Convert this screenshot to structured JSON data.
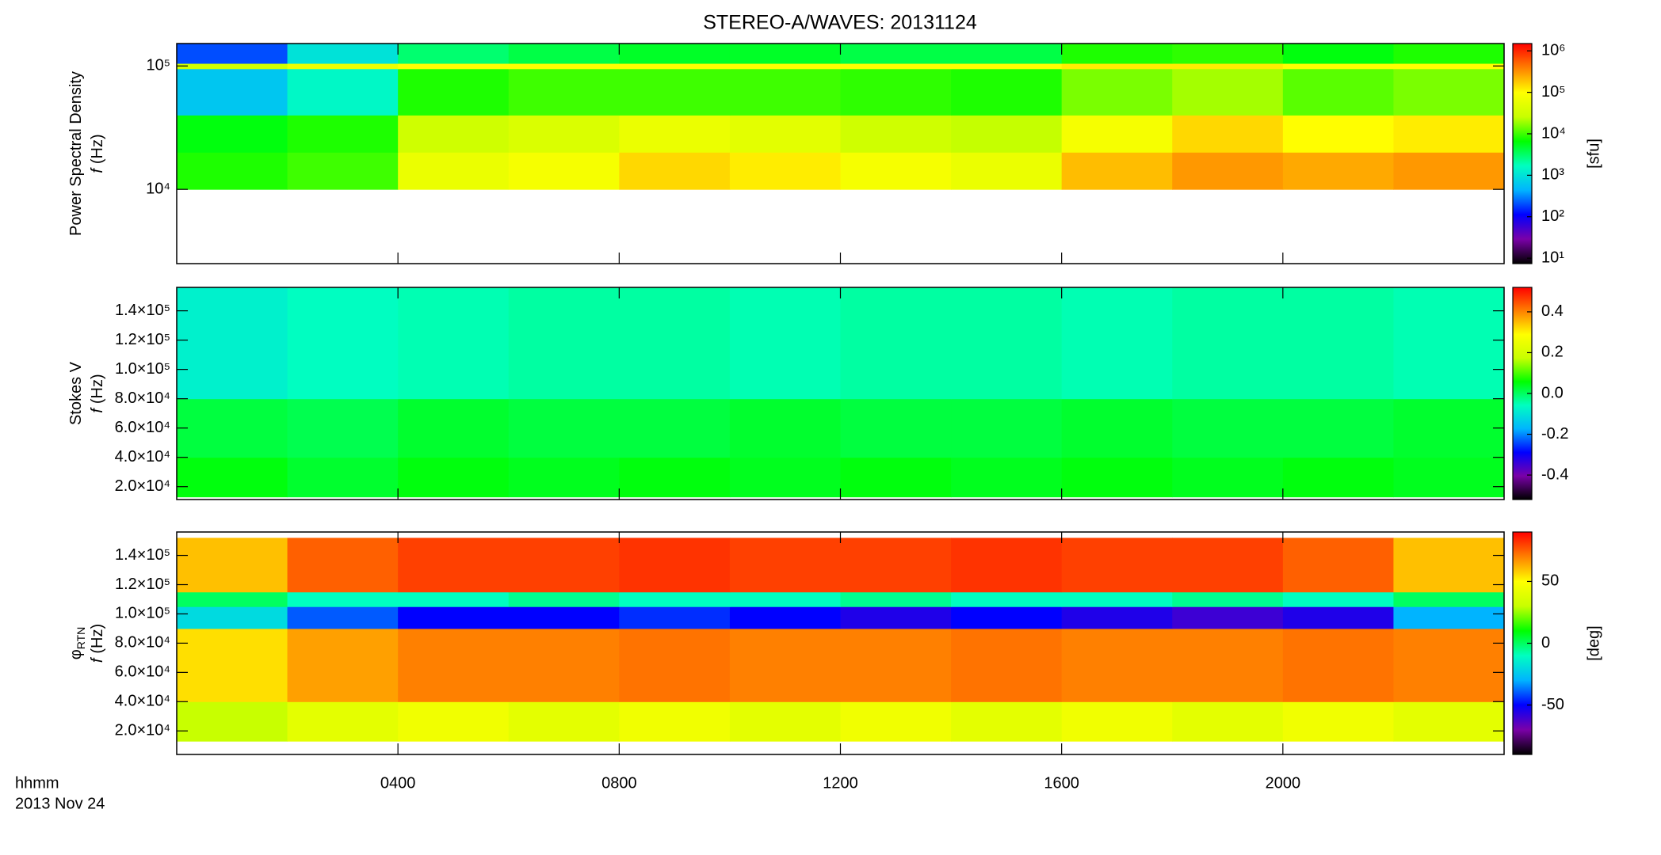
{
  "chart_data": [
    {
      "type": "heatmap",
      "title": "STEREO-A/WAVES: 20131124",
      "quantity": "Power Spectral Density",
      "yvar": "f",
      "yunit": "(Hz)",
      "clabel": "[sfu]",
      "xlim": [
        0,
        24
      ],
      "xticks": [
        4,
        8,
        12,
        16,
        20
      ],
      "yscale": "log",
      "ylim": [
        2500,
        152000
      ],
      "yticks": [
        {
          "value": 10000,
          "label": "10⁴"
        },
        {
          "value": 100000,
          "label": "10⁵"
        }
      ],
      "xbins": [
        0,
        2,
        4,
        6,
        8,
        10,
        12,
        14,
        16,
        18,
        20,
        22,
        24
      ],
      "ybins": [
        10000,
        20000,
        40000,
        95000,
        105000,
        152000
      ],
      "z": [
        [
          8000,
          10000,
          60000,
          80000,
          150000,
          120000,
          80000,
          60000,
          200000,
          300000,
          250000,
          300000
        ],
        [
          6000,
          8000,
          30000,
          40000,
          60000,
          50000,
          30000,
          25000,
          80000,
          150000,
          100000,
          120000
        ],
        [
          600,
          1500,
          8000,
          10000,
          10000,
          10000,
          9000,
          8000,
          15000,
          20000,
          12000,
          15000
        ],
        [
          30000,
          60000,
          100000,
          100000,
          100000,
          100000,
          100000,
          100000,
          120000,
          120000,
          100000,
          100000
        ],
        [
          200,
          1000,
          3000,
          4000,
          5000,
          5000,
          4000,
          4000,
          8000,
          9000,
          6000,
          8000
        ]
      ],
      "cscale": "log",
      "clim": [
        7.4,
        1500000
      ],
      "cticks": [
        {
          "value": 10,
          "label": "10¹"
        },
        {
          "value": 100,
          "label": "10²"
        },
        {
          "value": 1000,
          "label": "10³"
        },
        {
          "value": 10000,
          "label": "10⁴"
        },
        {
          "value": 100000,
          "label": "10⁵"
        },
        {
          "value": 1000000,
          "label": "10⁶"
        }
      ],
      "colormap": [
        "#000000",
        "#7a00a8",
        "#0000ff",
        "#00b4ff",
        "#00ffc0",
        "#00ff00",
        "#c8ff00",
        "#ffff00",
        "#ff8000",
        "#ff0000"
      ]
    },
    {
      "type": "heatmap",
      "quantity": "Stokes V",
      "yvar": "f",
      "yunit": "(Hz)",
      "xlim": [
        0,
        24
      ],
      "xticks": [
        4,
        8,
        12,
        16,
        20
      ],
      "yscale": "linear",
      "ylim": [
        11200,
        156000
      ],
      "yticks": [
        {
          "value": 20000,
          "label": "2.0×10⁴"
        },
        {
          "value": 40000,
          "label": "4.0×10⁴"
        },
        {
          "value": 60000,
          "label": "6.0×10⁴"
        },
        {
          "value": 80000,
          "label": "8.0×10⁴"
        },
        {
          "value": 100000,
          "label": "1.0×10⁵"
        },
        {
          "value": 120000,
          "label": "1.2×10⁵"
        },
        {
          "value": 140000,
          "label": "1.4×10⁵"
        }
      ],
      "xbins": [
        0,
        2,
        4,
        6,
        8,
        10,
        12,
        14,
        16,
        18,
        20,
        22,
        24
      ],
      "ybins": [
        13000,
        40000,
        80000,
        156000
      ],
      "z": [
        [
          0.05,
          0.03,
          0.05,
          0.04,
          0.05,
          0.04,
          0.05,
          0.04,
          0.05,
          0.04,
          0.05,
          0.04
        ],
        [
          0.02,
          0.01,
          0.03,
          0.02,
          0.02,
          0.03,
          0.02,
          0.02,
          0.03,
          0.02,
          0.02,
          0.03
        ],
        [
          -0.08,
          -0.06,
          -0.05,
          -0.04,
          -0.04,
          -0.05,
          -0.04,
          -0.04,
          -0.05,
          -0.04,
          -0.04,
          -0.05
        ]
      ],
      "cscale": "linear",
      "clim": [
        -0.52,
        0.52
      ],
      "cticks": [
        -0.4,
        -0.2,
        {
          "value": 0,
          "label": "0.0"
        },
        0.2,
        0.4
      ],
      "colormap": [
        "#000000",
        "#7a00a8",
        "#0000ff",
        "#00b4ff",
        "#00ffc0",
        "#00ff00",
        "#c8ff00",
        "#ffff00",
        "#ff8000",
        "#ff0000"
      ]
    },
    {
      "type": "heatmap",
      "quantity": "φ",
      "quantity_sub": "RTN",
      "yvar": "f",
      "yunit": "(Hz)",
      "clabel": "[deg]",
      "xlim": [
        0,
        24
      ],
      "xticks": [
        {
          "value": 4,
          "label": "0400"
        },
        {
          "value": 8,
          "label": "0800"
        },
        {
          "value": 12,
          "label": "1200"
        },
        {
          "value": 16,
          "label": "1600"
        },
        {
          "value": 20,
          "label": "2000"
        }
      ],
      "xlabel": "hhmm",
      "date": "2013 Nov 24",
      "yscale": "linear",
      "ylim": [
        3900,
        156000
      ],
      "yticks": [
        {
          "value": 20000,
          "label": "2.0×10⁴"
        },
        {
          "value": 40000,
          "label": "4.0×10⁴"
        },
        {
          "value": 60000,
          "label": "6.0×10⁴"
        },
        {
          "value": 80000,
          "label": "8.0×10⁴"
        },
        {
          "value": 100000,
          "label": "1.0×10⁵"
        },
        {
          "value": 120000,
          "label": "1.2×10⁵"
        },
        {
          "value": 140000,
          "label": "1.4×10⁵"
        }
      ],
      "xbins": [
        0,
        2,
        4,
        6,
        8,
        10,
        12,
        14,
        16,
        18,
        20,
        22,
        24
      ],
      "ybins": [
        13000,
        40000,
        90000,
        105000,
        115000,
        152000
      ],
      "z": [
        [
          30,
          40,
          45,
          40,
          45,
          40,
          45,
          40,
          45,
          40,
          45,
          40
        ],
        [
          55,
          65,
          70,
          70,
          72,
          70,
          70,
          72,
          70,
          70,
          72,
          70
        ],
        [
          -20,
          -40,
          -50,
          -50,
          -45,
          -50,
          -55,
          -50,
          -55,
          -60,
          -55,
          -30
        ],
        [
          0,
          -10,
          -10,
          -5,
          -10,
          -10,
          -5,
          -10,
          -10,
          -5,
          -10,
          0
        ],
        [
          60,
          75,
          80,
          80,
          82,
          80,
          80,
          82,
          80,
          80,
          75,
          60
        ]
      ],
      "cscale": "linear",
      "clim": [
        -90,
        90
      ],
      "cticks": [
        -50,
        0,
        50
      ],
      "colormap": [
        "#000000",
        "#7a00a8",
        "#0000ff",
        "#00b4ff",
        "#00ffc0",
        "#00ff00",
        "#c8ff00",
        "#ffff00",
        "#ff8000",
        "#ff0000"
      ]
    }
  ]
}
